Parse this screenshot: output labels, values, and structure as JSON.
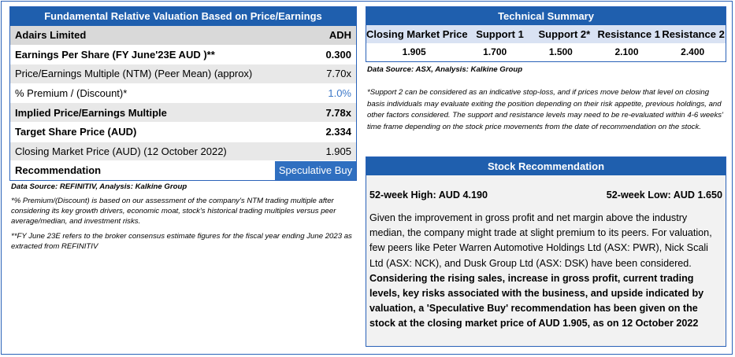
{
  "valuation": {
    "title": "Fundamental Relative Valuation Based on Price/Earnings",
    "company": "Adairs Limited",
    "ticker": "ADH",
    "rows": [
      {
        "label": "Earnings Per Share (FY June'23E AUD )**",
        "value": "0.300"
      },
      {
        "label": "Price/Earnings Multiple (NTM) (Peer Mean) (approx)",
        "value": "7.70x"
      },
      {
        "label": "% Premium / (Discount)*",
        "value": "1.0%"
      },
      {
        "label": "Implied Price/Earnings Multiple",
        "value": "7.78x"
      },
      {
        "label": "Target Share Price (AUD)",
        "value": "2.334"
      },
      {
        "label": "Closing Market Price (AUD) (12 October 2022)",
        "value": "1.905"
      }
    ],
    "recommendation_label": "Recommendation",
    "recommendation_value": "Speculative Buy",
    "source": "Data Source: REFINITIV, Analysis: Kalkine Group",
    "footnote1": "*% Premium/(Discount) is based on our assessment of the company's NTM trading multiple after considering its key growth drivers, economic moat, stock's historical trading multiples versus peer average/median, and investment risks.",
    "footnote2": "**FY June 23E refers to the broker consensus estimate figures for the fiscal year ending June 2023 as extracted from REFINITIV"
  },
  "technical": {
    "title": "Technical Summary",
    "columns": [
      "Closing Market Price",
      "Support 1",
      "Support 2*",
      "Resistance 1",
      "Resistance 2"
    ],
    "values": [
      "1.905",
      "1.700",
      "1.500",
      "2.100",
      "2.400"
    ],
    "source": "Data Source: ASX, Analysis: Kalkine Group",
    "note": "*Support 2 can be considered as an indicative stop-loss, and if prices move below that level on closing basis individuals may evaluate exiting the position depending on their risk appetite, previous holdings, and other factors considered. The support and resistance levels may need to be re-evaluated within 4-6 weeks' time frame depending on the stock price movements from the date of recommendation on the stock."
  },
  "stock_rec": {
    "title": "Stock Recommendation",
    "high": "52-week High: AUD 4.190",
    "low": "52-week Low: AUD 1.650",
    "text_plain": "Given the improvement in gross profit and net margin above the industry median, the company might trade at slight premium to its peers. For valuation, few peers like Peter Warren Automotive Holdings Ltd (ASX: PWR), Nick Scali Ltd (ASX: NCK), and Dusk Group Ltd (ASX: DSK) have been considered.",
    "text_bold": "Considering the rising sales, increase in gross profit, current trading levels, key risks associated with the business, and upside indicated by valuation, a 'Speculative Buy' recommendation has been given on the stock at the closing market price of AUD 1.905, as on 12 October 2022"
  }
}
